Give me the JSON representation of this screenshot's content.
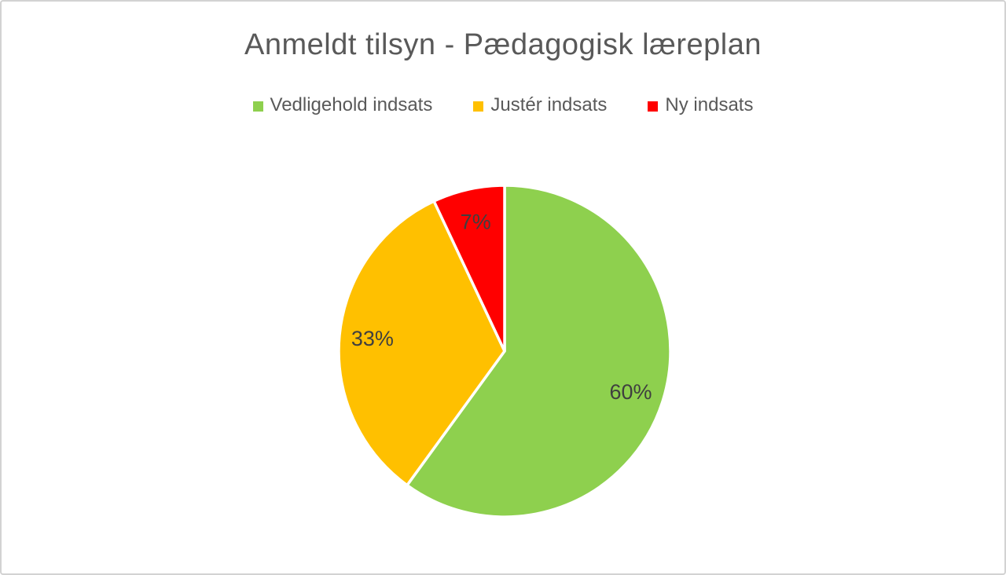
{
  "frame": {
    "background": "#FFFFFF",
    "border_color": "#D2D2D2"
  },
  "chart_data": {
    "type": "pie",
    "title": "Anmeldt tilsyn - Pædagogisk læreplan",
    "categories": [
      "Vedligehold indsats",
      "Justér indsats",
      "Ny indsats"
    ],
    "values": [
      60,
      33,
      7
    ],
    "data_labels": [
      "60%",
      "33%",
      "7%"
    ],
    "colors": [
      "#8ED04E",
      "#FFC000",
      "#FF0000"
    ],
    "title_color": "#595959",
    "legend_text_color": "#595959",
    "data_label_color": "#3F3F3F",
    "slice_border_color": "#FFFFFF",
    "legend_position": "top",
    "start_angle_deg": 0,
    "direction": "clockwise"
  }
}
